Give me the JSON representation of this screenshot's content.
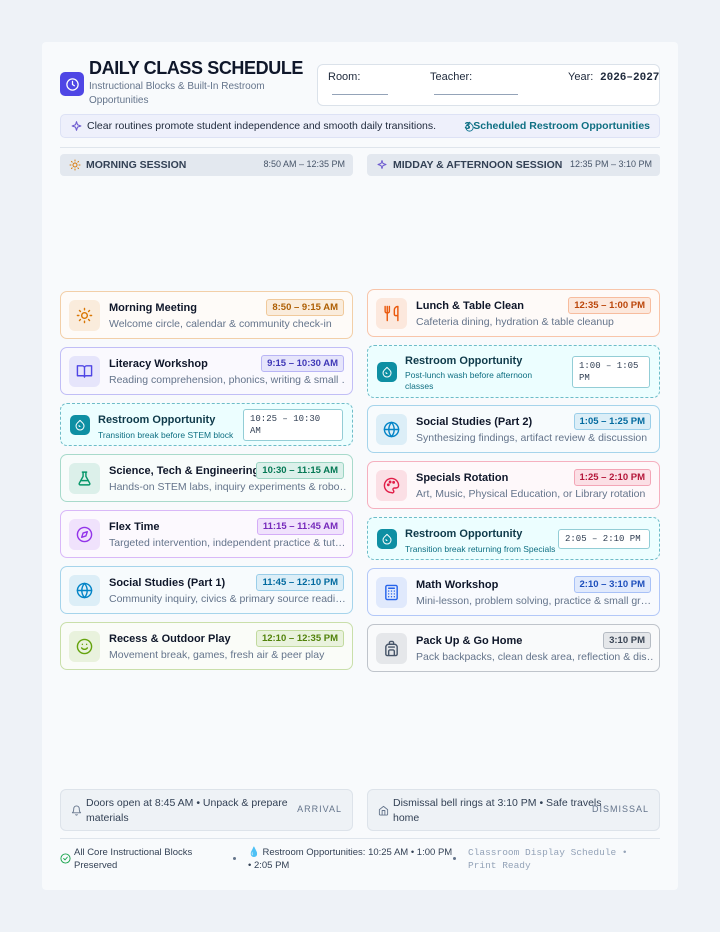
{
  "header": {
    "title": "DAILY CLASS SCHEDULE",
    "subtitle": "Instructional Blocks & Built-In Restroom Opportunities",
    "fields": [
      {
        "label": "Room:"
      },
      {
        "label": "Teacher:"
      },
      {
        "label": "Year:",
        "value": "2026–2027"
      }
    ]
  },
  "banner": {
    "message": "Clear routines promote student independence and smooth daily transitions.",
    "restroom_summary": "3 Scheduled Restroom Opportunities"
  },
  "sessions": [
    {
      "name": "MORNING SESSION",
      "time": "8:50 AM – 12:35 PM",
      "blocks": [
        {
          "type": "class",
          "title": "Morning Meeting",
          "time": "8:50 – 9:15 AM",
          "description": "Welcome circle, calendar & community check-in",
          "color": "#d97706"
        },
        {
          "type": "class",
          "title": "Literacy Workshop",
          "time": "9:15 – 10:30 AM",
          "description": "Reading comprehension, phonics, writing & small …",
          "color": "#4f46e5"
        },
        {
          "type": "restroom",
          "title": "Restroom Opportunity",
          "time": "10:25 – 10:30 AM",
          "description": "Transition break before STEM block",
          "color": "#0e8fa3"
        },
        {
          "type": "class",
          "title": "Science, Tech & Engineering",
          "time": "10:30 – 11:15 AM",
          "description": "Hands-on STEM labs, inquiry experiments & robo…",
          "color": "#059669"
        },
        {
          "type": "class",
          "title": "Flex Time",
          "time": "11:15 – 11:45 AM",
          "description": "Targeted intervention, independent practice & tut…",
          "color": "#9333ea"
        },
        {
          "type": "class",
          "title": "Social Studies (Part 1)",
          "time": "11:45 – 12:10 PM",
          "description": "Community inquiry, civics & primary source readi…",
          "color": "#0284c7"
        },
        {
          "type": "class",
          "title": "Recess & Outdoor Play",
          "time": "12:10 – 12:35 PM",
          "description": "Movement break, games, fresh air & peer play",
          "color": "#65a30d"
        }
      ]
    },
    {
      "name": "MIDDAY & AFTERNOON SESSION",
      "time": "12:35 PM – 3:10 PM",
      "blocks": [
        {
          "type": "class",
          "title": "Lunch & Table Clean",
          "time": "12:35 – 1:00 PM",
          "description": "Cafeteria dining, hydration & table cleanup",
          "color": "#ea580c"
        },
        {
          "type": "restroom",
          "title": "Restroom Opportunity",
          "time": "1:00 – 1:05 PM",
          "description": "Post-lunch wash before afternoon classes",
          "color": "#0e8fa3"
        },
        {
          "type": "class",
          "title": "Social Studies (Part 2)",
          "time": "1:05 – 1:25 PM",
          "description": "Synthesizing findings, artifact review & discussion",
          "color": "#0284c7"
        },
        {
          "type": "class",
          "title": "Specials Rotation",
          "time": "1:25 – 2:10 PM",
          "description": "Art, Music, Physical Education, or Library rotation",
          "color": "#e11d48"
        },
        {
          "type": "restroom",
          "title": "Restroom Opportunity",
          "time": "2:05 – 2:10 PM",
          "description": "Transition break returning from Specials",
          "color": "#0e8fa3"
        },
        {
          "type": "class",
          "title": "Math Workshop",
          "time": "2:10 – 3:10 PM",
          "description": "Mini-lesson, problem solving, practice & small gr…",
          "color": "#2563eb"
        },
        {
          "type": "class",
          "title": "Pack Up & Go Home",
          "time": "3:10 PM",
          "description": "Pack backpacks, clean desk area, reflection & dis…",
          "color": "#475569"
        }
      ]
    }
  ],
  "notes": [
    {
      "text": "Doors open at 8:45 AM • Unpack & prepare materials",
      "tag": "ARRIVAL"
    },
    {
      "text": "Dismissal bell rings at 3:10 PM • Safe travels home",
      "tag": "DISMISSAL"
    }
  ],
  "status": [
    "All Core Instructional Blocks Preserved",
    "💧 Restroom Opportunities: 10:25 AM • 1:00 PM • 2:05 PM",
    "Classroom Display Schedule • Print Ready"
  ]
}
